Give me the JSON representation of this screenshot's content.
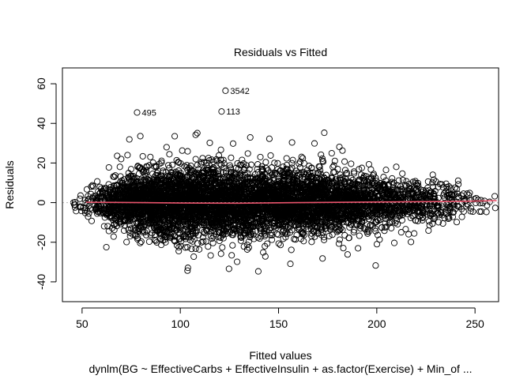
{
  "chart_data": {
    "type": "scatter",
    "title": "Residuals vs Fitted",
    "xlabel": "Fitted values",
    "ylabel": "Residuals",
    "subtitle": "dynlm(BG ~ EffectiveCarbs + EffectiveInsulin + as.factor(Exercise) + Min_of ...",
    "xlim": [
      40,
      262
    ],
    "ylim": [
      -50,
      68
    ],
    "x_ticks": [
      50,
      100,
      150,
      200,
      250
    ],
    "y_ticks": [
      -40,
      -20,
      0,
      20,
      40,
      60
    ],
    "reference_line_y": 0,
    "grid": false,
    "colors": {
      "points": "#000000",
      "smooth_line": "#e8536b",
      "reference_line": "#b5b5b5"
    },
    "labeled_points": [
      {
        "label": "3542",
        "x": 123,
        "y": 56.5
      },
      {
        "label": "495",
        "x": 78,
        "y": 45.5
      },
      {
        "label": "113",
        "x": 121,
        "y": 46
      }
    ],
    "smooth_line": {
      "x": [
        52,
        80,
        100,
        130,
        160,
        200,
        240,
        261
      ],
      "y": [
        0.2,
        0,
        -0.2,
        -0.3,
        0,
        0.3,
        0.6,
        1
      ]
    },
    "density": {
      "note_x": [
        50,
        60,
        70,
        80,
        90,
        100,
        110,
        120,
        130,
        140,
        150,
        160,
        170,
        180,
        190,
        200,
        210,
        220,
        230,
        240,
        250,
        260
      ],
      "note_spread_sd": [
        3,
        4.5,
        6.5,
        7.5,
        8,
        8.5,
        8.5,
        8.5,
        8.5,
        8.5,
        8,
        8,
        8,
        7.5,
        7,
        6.5,
        6,
        5.5,
        5,
        4.5,
        3.5,
        2.5
      ],
      "note_relative_count": [
        0.05,
        0.3,
        0.75,
        1,
        1,
        1,
        1,
        1,
        1,
        0.95,
        0.9,
        0.85,
        0.85,
        0.75,
        0.6,
        0.5,
        0.4,
        0.3,
        0.2,
        0.12,
        0.06,
        0.02
      ]
    }
  }
}
